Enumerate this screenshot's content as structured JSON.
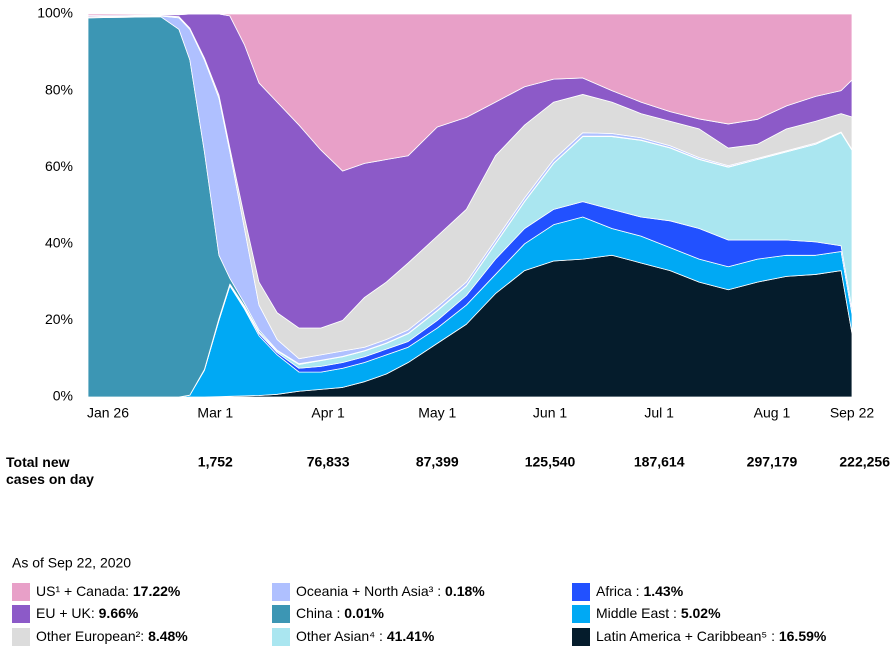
{
  "chart_data": {
    "type": "stacked_area",
    "x": [
      0,
      20,
      25,
      28,
      32,
      36,
      39,
      43,
      47,
      52,
      58,
      64,
      70,
      76,
      82,
      88,
      96,
      104,
      112,
      120,
      128,
      136,
      144,
      152,
      160,
      168,
      176,
      184,
      192,
      200,
      207,
      210
    ],
    "xlim": [
      0,
      210
    ],
    "xticks": [
      {
        "value": 0,
        "label": "Jan 26"
      },
      {
        "value": 35,
        "label": "Mar 1"
      },
      {
        "value": 66,
        "label": "Apr 1"
      },
      {
        "value": 96,
        "label": "May 1"
      },
      {
        "value": 127,
        "label": "Jun 1"
      },
      {
        "value": 157,
        "label": "Jul 1"
      },
      {
        "value": 188,
        "label": "Aug 1"
      },
      {
        "value": 210,
        "label": "Sep 22"
      }
    ],
    "ylim": [
      0,
      100
    ],
    "yticks": [
      {
        "value": 0,
        "label": "0%"
      },
      {
        "value": 20,
        "label": "20%"
      },
      {
        "value": 40,
        "label": "40%"
      },
      {
        "value": 60,
        "label": "60%"
      },
      {
        "value": 80,
        "label": "80%"
      },
      {
        "value": 100,
        "label": "100%"
      }
    ],
    "series": [
      {
        "name": "Latin America + Caribbean⁵ :",
        "color": "#051c2c",
        "values": [
          0,
          0,
          0,
          0,
          0,
          0.1,
          0.2,
          0.3,
          0.4,
          0.7,
          1.5,
          2,
          2.5,
          4,
          6,
          9,
          14,
          19,
          27,
          33,
          35.5,
          36,
          37,
          35,
          33,
          30,
          28,
          30,
          31.5,
          32,
          33,
          16.59
        ],
        "value_labels": [
          null,
          null,
          null,
          null,
          null,
          null,
          null,
          null,
          null,
          null,
          null,
          null,
          null,
          null,
          null,
          null,
          null,
          null,
          null,
          null,
          null,
          null,
          null,
          null,
          null,
          null,
          null,
          null,
          null,
          null,
          null,
          "16.59%"
        ]
      },
      {
        "name": "Middle East :",
        "color": "#00a9f4",
        "values": [
          0,
          0,
          0,
          0.5,
          7,
          19.9,
          28.8,
          22.7,
          15.6,
          10.3,
          5,
          4.5,
          5,
          5,
          5,
          4,
          4,
          5,
          5,
          7,
          9.5,
          11,
          7,
          7,
          6,
          6,
          6,
          6,
          5.5,
          5,
          5,
          5.02
        ],
        "value_labels": [
          null,
          null,
          null,
          null,
          null,
          null,
          null,
          null,
          null,
          null,
          null,
          null,
          null,
          null,
          null,
          null,
          null,
          null,
          null,
          null,
          null,
          null,
          null,
          null,
          null,
          null,
          null,
          null,
          null,
          null,
          null,
          "5.02%"
        ]
      },
      {
        "name": "Africa :",
        "color": "#2251ff",
        "values": [
          0,
          0,
          0,
          0,
          0,
          0.2,
          0.2,
          0.4,
          0.6,
          0.6,
          1,
          1.5,
          1.5,
          1.5,
          1.5,
          1.5,
          2,
          2.5,
          4,
          4,
          4,
          4,
          5,
          5,
          7,
          8,
          7,
          5,
          4,
          3.5,
          1.5,
          1.43
        ],
        "value_labels": [
          null,
          null,
          null,
          null,
          null,
          null,
          null,
          null,
          null,
          null,
          null,
          null,
          null,
          null,
          null,
          null,
          null,
          null,
          null,
          null,
          null,
          null,
          null,
          null,
          null,
          null,
          null,
          null,
          null,
          null,
          null,
          "1.43%"
        ]
      },
      {
        "name": "Other Asian⁴ :",
        "color": "#aae6f0",
        "values": [
          0,
          0,
          0,
          0,
          0.2,
          0.3,
          0.3,
          0.4,
          0.4,
          0.4,
          1,
          1.5,
          1.5,
          1.5,
          1.5,
          2,
          2.5,
          2.5,
          4,
          7,
          12,
          17,
          19,
          20,
          19,
          18,
          19,
          21,
          23,
          25.5,
          29.5,
          41.41
        ],
        "value_labels": [
          null,
          null,
          null,
          null,
          null,
          null,
          null,
          null,
          null,
          null,
          null,
          null,
          null,
          null,
          null,
          null,
          null,
          null,
          null,
          null,
          null,
          null,
          null,
          null,
          null,
          null,
          null,
          null,
          null,
          null,
          null,
          "41.41%"
        ]
      },
      {
        "name": "China :",
        "color": "#3c96b4",
        "values": [
          99,
          99.3,
          96,
          87.5,
          56.8,
          16.5,
          1.5,
          0.7,
          0.5,
          0.2,
          0.2,
          0.1,
          0.1,
          0.1,
          0.1,
          0.1,
          0.1,
          0.1,
          0.1,
          0.1,
          0.1,
          0.1,
          0.1,
          0.1,
          0.1,
          0.1,
          0.1,
          0.05,
          0.05,
          0.03,
          0.02,
          0.01
        ],
        "value_labels": [
          null,
          null,
          null,
          null,
          null,
          null,
          null,
          null,
          null,
          null,
          null,
          null,
          null,
          null,
          null,
          null,
          null,
          null,
          null,
          null,
          null,
          null,
          null,
          null,
          null,
          null,
          null,
          null,
          null,
          null,
          null,
          "0.01%"
        ]
      },
      {
        "name": "Oceania + North Asia³ :",
        "color": "#afc0ff",
        "values": [
          0,
          0.2,
          3,
          8,
          24,
          41,
          33,
          19.5,
          6.5,
          2.8,
          1.3,
          1.4,
          1.4,
          0.9,
          0.9,
          0.9,
          0.9,
          0.9,
          0.9,
          0.9,
          0.9,
          0.9,
          0.7,
          0.6,
          0.5,
          0.4,
          0.3,
          0.25,
          0.25,
          0.27,
          0.18,
          0.18
        ],
        "value_labels": [
          null,
          null,
          null,
          null,
          null,
          null,
          null,
          null,
          null,
          null,
          null,
          null,
          null,
          null,
          null,
          null,
          null,
          null,
          null,
          null,
          null,
          null,
          null,
          null,
          null,
          null,
          null,
          null,
          null,
          null,
          null,
          "0.18%"
        ]
      },
      {
        "name": "Other European²:",
        "color": "#dcdcdc",
        "values": [
          0.3,
          0.1,
          0.3,
          0.3,
          0.5,
          0.8,
          1,
          3,
          6,
          7,
          8,
          7,
          8,
          13,
          15,
          17.5,
          18.5,
          19,
          22,
          19,
          15,
          10,
          8.2,
          6.3,
          6.4,
          7.5,
          4.6,
          3.7,
          5.7,
          5.7,
          4.8,
          8.48
        ],
        "value_labels": [
          null,
          null,
          null,
          null,
          null,
          null,
          null,
          null,
          null,
          null,
          null,
          null,
          null,
          null,
          null,
          null,
          null,
          null,
          null,
          null,
          null,
          null,
          null,
          null,
          null,
          null,
          null,
          null,
          null,
          null,
          null,
          "8.48%"
        ]
      },
      {
        "name": "EU + UK:",
        "color": "#8c5ac8",
        "values": [
          0.3,
          0.2,
          0.5,
          3.7,
          11.5,
          21.2,
          34.5,
          45,
          52,
          55,
          53,
          46.5,
          39,
          35,
          32,
          28,
          28.5,
          24,
          14,
          10,
          6,
          4.3,
          3,
          3,
          2.5,
          2.6,
          6.3,
          6.5,
          6,
          6.5,
          6,
          9.66
        ],
        "value_labels": [
          null,
          null,
          null,
          null,
          null,
          null,
          null,
          null,
          null,
          null,
          null,
          null,
          null,
          null,
          null,
          null,
          null,
          null,
          null,
          null,
          null,
          null,
          null,
          null,
          null,
          null,
          null,
          null,
          null,
          null,
          null,
          "9.66%"
        ]
      },
      {
        "name": "US¹ + Canada:",
        "color": "#e8a0c8",
        "values": [
          0.4,
          0.2,
          0.2,
          0,
          0,
          0,
          0.5,
          8,
          18,
          23,
          29,
          35.5,
          41,
          39,
          38,
          37,
          29.5,
          27,
          23,
          19,
          17,
          16.7,
          20,
          23,
          25.5,
          27.4,
          28.7,
          27.5,
          24,
          21.5,
          20,
          17.22
        ],
        "value_labels": [
          null,
          null,
          null,
          null,
          null,
          null,
          null,
          null,
          null,
          null,
          null,
          null,
          null,
          null,
          null,
          null,
          null,
          null,
          null,
          null,
          null,
          null,
          null,
          null,
          null,
          null,
          null,
          null,
          null,
          null,
          null,
          "17.22%"
        ]
      }
    ],
    "totals": {
      "label": "Total new cases on day",
      "values": [
        1752,
        76833,
        87399,
        125540,
        187614,
        297179,
        222256
      ],
      "value_labels": [
        "1,752",
        "76,833",
        "87,399",
        "125,540",
        "187,614",
        "297,179",
        "222,256"
      ]
    },
    "note": "As of Sep 22, 2020"
  }
}
